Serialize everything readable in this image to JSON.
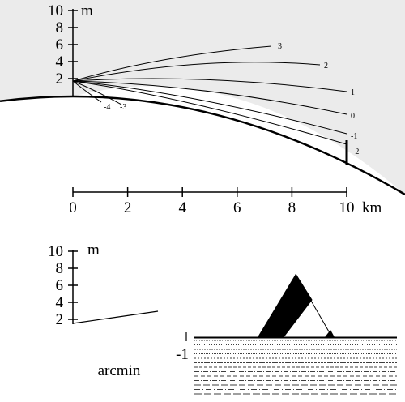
{
  "top": {
    "height_axis": {
      "unit": "m",
      "ticks": [
        2,
        4,
        6,
        8,
        10
      ]
    },
    "distance_axis": {
      "unit": "km",
      "ticks": [
        0,
        2,
        4,
        6,
        8,
        10
      ]
    },
    "rays": [
      3,
      2,
      1,
      0,
      -1,
      -2,
      -4,
      -3
    ]
  },
  "bottom": {
    "height_axis": {
      "unit": "m",
      "ticks": [
        2,
        4,
        6,
        8,
        10
      ]
    },
    "x_label": "arcmin",
    "angle_tick": -1
  }
}
